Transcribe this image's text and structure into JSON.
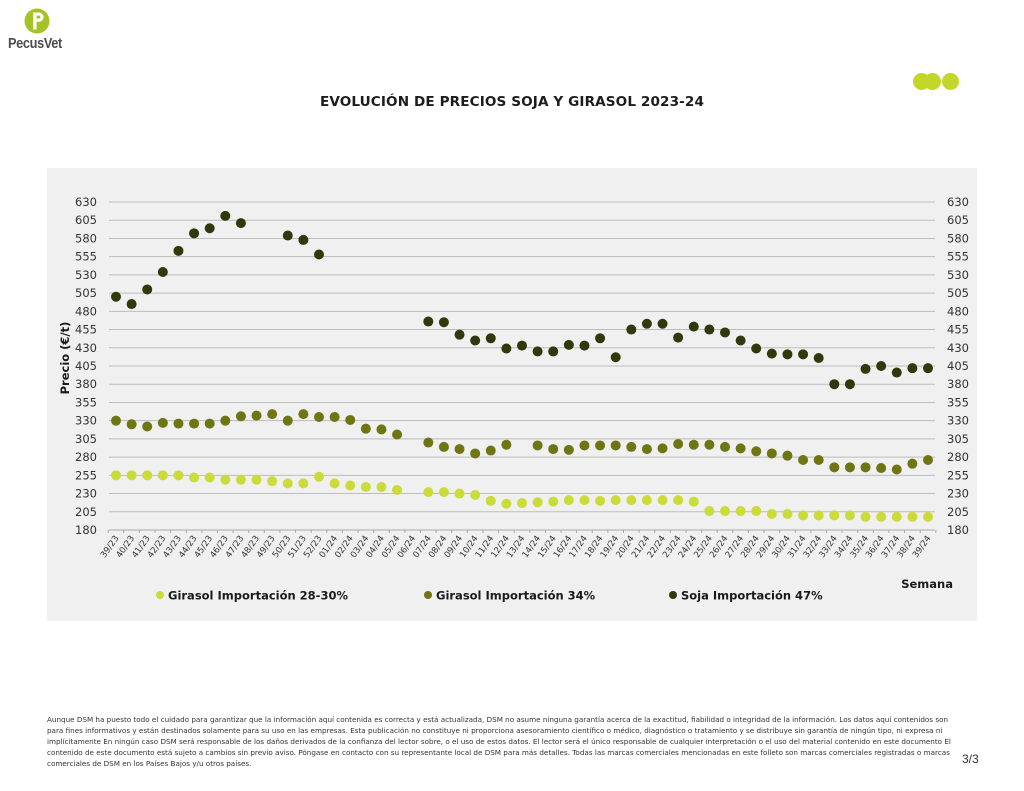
{
  "header": {
    "brand": "PecusVet",
    "logo_icon": "pecusvet-p-logo-icon",
    "decoration_icon": "three-dots-icon",
    "brand_color": "#c4d62a"
  },
  "page_title": "EVOLUCIÓN DE PRECIOS SOJA Y GIRASOL 2023-24",
  "chart_data": {
    "type": "scatter",
    "title": "EVOLUCIÓN DE PRECIOS SOJA Y GIRASOL 2023-24",
    "xlabel": "Semana",
    "ylabel": "Precio (€/t)",
    "ylim": [
      180,
      630
    ],
    "yticks": [
      630,
      605,
      580,
      555,
      530,
      505,
      480,
      455,
      430,
      405,
      380,
      355,
      330,
      305,
      280,
      255,
      230,
      205,
      180
    ],
    "grid": true,
    "secondary_y_axis": true,
    "legend_position": "bottom",
    "categories": [
      "39/23",
      "40/23",
      "41/23",
      "42/23",
      "43/23",
      "44/23",
      "45/23",
      "46/23",
      "47/23",
      "48/23",
      "49/23",
      "50/23",
      "51/23",
      "52/23",
      "01/24",
      "02/24",
      "03/24",
      "04/24",
      "05/24",
      "06/24",
      "07/24",
      "08/24",
      "09/24",
      "10/24",
      "11/24",
      "12/24",
      "13/24",
      "14/24",
      "15/24",
      "16/24",
      "17/24",
      "18/24",
      "19/24",
      "20/24",
      "21/24",
      "22/24",
      "23/24",
      "24/24",
      "25/24",
      "26/24",
      "27/24",
      "28/24",
      "29/24",
      "30/24",
      "31/24",
      "32/24",
      "33/24",
      "34/24",
      "35/24",
      "36/24",
      "37/24",
      "38/24",
      "39/24"
    ],
    "series": [
      {
        "name": "Girasol Importación 28-30%",
        "color": "#cbdb3a",
        "values": [
          255,
          255,
          255,
          255,
          255,
          252,
          252,
          249,
          249,
          249,
          247,
          244,
          244,
          253,
          244,
          241,
          239,
          239,
          235,
          null,
          232,
          232,
          230,
          228,
          220,
          216,
          217,
          218,
          219,
          221,
          221,
          220,
          221,
          221,
          221,
          221,
          221,
          219,
          206,
          206,
          206,
          206,
          202,
          202,
          200,
          200,
          200,
          200,
          198,
          198,
          198,
          198,
          198
        ]
      },
      {
        "name": "Girasol Importación 34%",
        "color": "#6e7512",
        "values": [
          330,
          325,
          322,
          327,
          326,
          326,
          326,
          330,
          336,
          337,
          339,
          330,
          339,
          335,
          335,
          331,
          319,
          318,
          311,
          null,
          300,
          294,
          291,
          285,
          289,
          297,
          null,
          296,
          291,
          290,
          296,
          296,
          296,
          294,
          291,
          292,
          298,
          297,
          297,
          294,
          292,
          288,
          285,
          282,
          276,
          276,
          266,
          266,
          266,
          265,
          263,
          271,
          276
        ]
      },
      {
        "name": "Soja Importación 47%",
        "color": "#2f3a0c",
        "values": [
          500,
          490,
          510,
          534,
          563,
          587,
          594,
          611,
          601,
          null,
          null,
          584,
          578,
          558,
          null,
          null,
          null,
          null,
          null,
          null,
          466,
          465,
          448,
          440,
          443,
          429,
          433,
          425,
          425,
          434,
          433,
          443,
          417,
          455,
          463,
          463,
          444,
          459,
          455,
          451,
          440,
          429,
          422,
          421,
          421,
          416,
          380,
          380,
          401,
          405,
          396,
          402,
          402
        ]
      }
    ]
  },
  "footer": {
    "disclaimer": "Aunque DSM ha puesto todo el cuidado para garantizar que la información aquí contenida es correcta y está actualizada, DSM no asume ninguna garantía acerca de la exactitud, fiabilidad o integridad de la información. Los datos aquí contenidos son para fines informativos y están destinados solamente para su uso en las empresas. Esta publicación no constituye ni proporciona asesoramiento científico o médico, diagnóstico o tratamiento y se distribuye sin garantía de ningún tipo, ni expresa ni implícitamente En ningún caso DSM será responsable de los daños derivados de la confianza del lector sobre, o el uso de estos datos. El lector será el único responsable de cualquier interpretación o el uso del material contenido en este documento El contenido de este documento está sujeto a cambios sin previo aviso. Póngase en contacto con su representante local de DSM para más detalles. Todas las marcas comerciales mencionadas en este folleto son marcas comerciales registradas o marcas comerciales de DSM en los Países Bajos y/u otros países.",
    "page_number": "3/3"
  }
}
